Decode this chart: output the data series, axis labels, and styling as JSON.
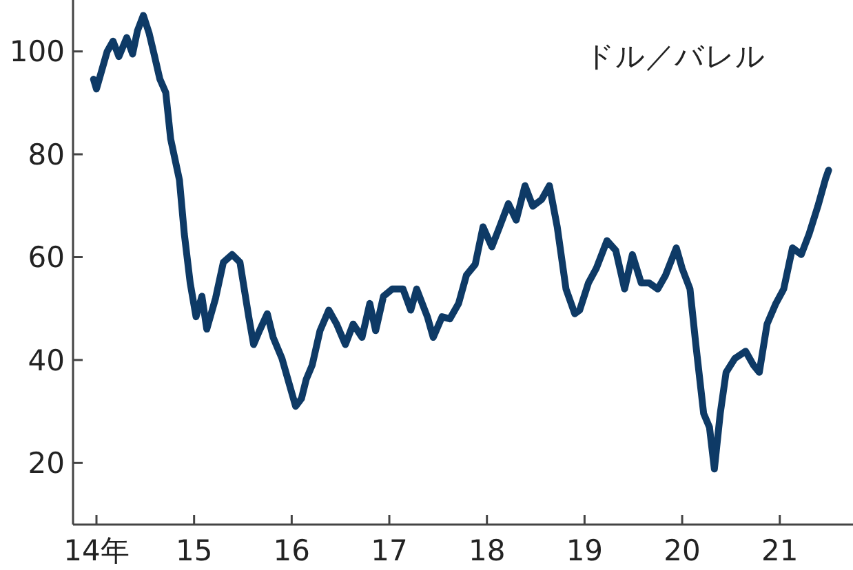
{
  "chart_data": {
    "type": "line",
    "ylabel": "ドル／バレル",
    "xlim": [
      13.76,
      21.75
    ],
    "ylim": [
      8,
      110
    ],
    "xticks": [
      {
        "value": 14,
        "label": "14年"
      },
      15,
      16,
      17,
      18,
      19,
      20,
      21
    ],
    "yticks": [
      20,
      40,
      60,
      80,
      100
    ],
    "grid": false,
    "marker": "none",
    "line_style": "solid",
    "series": [
      {
        "color": "#0e3a66",
        "x": [
          13.97,
          14.0,
          14.11,
          14.17,
          14.23,
          14.31,
          14.37,
          14.42,
          14.48,
          14.54,
          14.59,
          14.65,
          14.71,
          14.76,
          14.85,
          14.9,
          14.96,
          15.02,
          15.08,
          15.13,
          15.22,
          15.3,
          15.39,
          15.47,
          15.56,
          15.61,
          15.67,
          15.75,
          15.81,
          15.9,
          15.98,
          16.04,
          16.1,
          16.15,
          16.21,
          16.29,
          16.38,
          16.46,
          16.55,
          16.63,
          16.72,
          16.8,
          16.86,
          16.94,
          17.03,
          17.14,
          17.22,
          17.28,
          17.39,
          17.45,
          17.54,
          17.62,
          17.71,
          17.79,
          17.88,
          17.96,
          18.05,
          18.13,
          18.22,
          18.3,
          18.39,
          18.47,
          18.56,
          18.64,
          18.72,
          18.81,
          18.9,
          18.95,
          19.04,
          19.12,
          19.23,
          19.32,
          19.41,
          19.49,
          19.58,
          19.66,
          19.75,
          19.83,
          19.94,
          20.0,
          20.08,
          20.14,
          20.22,
          20.28,
          20.33,
          20.39,
          20.45,
          20.54,
          20.65,
          20.73,
          20.79,
          20.87,
          20.96,
          21.04,
          21.13,
          21.22,
          21.3,
          21.39,
          21.47,
          21.5
        ],
        "values": [
          94.6,
          92.7,
          100,
          102,
          99,
          102.7,
          99.5,
          104,
          107,
          103.5,
          99.5,
          94.6,
          92,
          83,
          75,
          64.5,
          55,
          48.4,
          52.4,
          46,
          52,
          59,
          60.5,
          59,
          48.4,
          43,
          45.7,
          49,
          44.4,
          40.3,
          35,
          31,
          32.5,
          36.3,
          39,
          45.7,
          49.7,
          47,
          43,
          47,
          44.4,
          51,
          45.7,
          52.4,
          53.8,
          53.8,
          49.7,
          53.8,
          48.4,
          44.4,
          48.4,
          48,
          51,
          56.5,
          58.6,
          65.9,
          62,
          65.9,
          70.4,
          67.2,
          73.9,
          69.9,
          71.2,
          73.9,
          65.9,
          53.8,
          49,
          49.7,
          55,
          57.8,
          63.2,
          61.3,
          53.8,
          60.5,
          55,
          55,
          53.8,
          56.5,
          61.8,
          57.8,
          53.8,
          43,
          29.6,
          26.9,
          18.8,
          29.6,
          37.6,
          40.3,
          41.7,
          39,
          37.6,
          47,
          51,
          53.8,
          61.8,
          60.5,
          64.5,
          69.9,
          75.3,
          76.9
        ]
      }
    ]
  }
}
